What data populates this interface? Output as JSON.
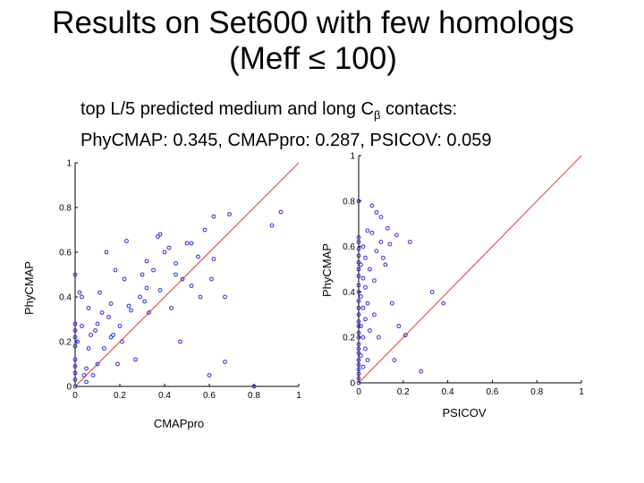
{
  "title": {
    "line1": "Results on Set600 with few homologs",
    "line2": "(Meff  ≤ 100)"
  },
  "subtitle": {
    "line1_before": "top L/5 predicted medium and long C",
    "line1_sub": "β",
    "line1_after": " contacts:",
    "line2": "PhyCMAP: 0.345, CMAPpro: 0.287, PSICOV: 0.059"
  },
  "chart_data": [
    {
      "type": "scatter",
      "xlabel": "CMAPpro",
      "ylabel": "PhyCMAP",
      "xlim": [
        0,
        1
      ],
      "ylim": [
        0,
        1
      ],
      "xticks": [
        0,
        0.2,
        0.4,
        0.6,
        0.8,
        1
      ],
      "yticks": [
        0,
        0.2,
        0.4,
        0.6,
        0.8,
        1
      ],
      "diagonal": true,
      "marker_color": "#2b2bd6",
      "line_color": "#e23b2e",
      "points": [
        [
          0.0,
          0.0
        ],
        [
          0.0,
          0.03
        ],
        [
          0.0,
          0.06
        ],
        [
          0.0,
          0.09
        ],
        [
          0.0,
          0.12
        ],
        [
          0.0,
          0.18
        ],
        [
          0.0,
          0.22
        ],
        [
          0.0,
          0.25
        ],
        [
          0.0,
          0.28
        ],
        [
          0.0,
          0.5
        ],
        [
          0.01,
          0.2
        ],
        [
          0.02,
          0.42
        ],
        [
          0.03,
          0.27
        ],
        [
          0.03,
          0.4
        ],
        [
          0.04,
          0.05
        ],
        [
          0.05,
          0.02
        ],
        [
          0.05,
          0.08
        ],
        [
          0.06,
          0.17
        ],
        [
          0.06,
          0.35
        ],
        [
          0.07,
          0.23
        ],
        [
          0.08,
          0.05
        ],
        [
          0.09,
          0.25
        ],
        [
          0.1,
          0.1
        ],
        [
          0.1,
          0.28
        ],
        [
          0.11,
          0.42
        ],
        [
          0.12,
          0.33
        ],
        [
          0.13,
          0.17
        ],
        [
          0.14,
          0.6
        ],
        [
          0.15,
          0.31
        ],
        [
          0.16,
          0.22
        ],
        [
          0.16,
          0.37
        ],
        [
          0.17,
          0.23
        ],
        [
          0.18,
          0.52
        ],
        [
          0.19,
          0.1
        ],
        [
          0.2,
          0.27
        ],
        [
          0.21,
          0.2
        ],
        [
          0.22,
          0.48
        ],
        [
          0.23,
          0.65
        ],
        [
          0.24,
          0.36
        ],
        [
          0.25,
          0.34
        ],
        [
          0.27,
          0.12
        ],
        [
          0.29,
          0.4
        ],
        [
          0.3,
          0.5
        ],
        [
          0.31,
          0.38
        ],
        [
          0.32,
          0.56
        ],
        [
          0.32,
          0.44
        ],
        [
          0.33,
          0.33
        ],
        [
          0.35,
          0.52
        ],
        [
          0.37,
          0.67
        ],
        [
          0.38,
          0.68
        ],
        [
          0.38,
          0.43
        ],
        [
          0.4,
          0.6
        ],
        [
          0.42,
          0.62
        ],
        [
          0.43,
          0.35
        ],
        [
          0.45,
          0.5
        ],
        [
          0.45,
          0.55
        ],
        [
          0.47,
          0.2
        ],
        [
          0.48,
          0.48
        ],
        [
          0.5,
          0.64
        ],
        [
          0.52,
          0.64
        ],
        [
          0.52,
          0.45
        ],
        [
          0.55,
          0.58
        ],
        [
          0.56,
          0.4
        ],
        [
          0.58,
          0.7
        ],
        [
          0.6,
          0.05
        ],
        [
          0.61,
          0.48
        ],
        [
          0.62,
          0.76
        ],
        [
          0.62,
          0.57
        ],
        [
          0.67,
          0.4
        ],
        [
          0.67,
          0.11
        ],
        [
          0.69,
          0.77
        ],
        [
          0.8,
          0.0
        ],
        [
          0.88,
          0.72
        ],
        [
          0.92,
          0.78
        ]
      ]
    },
    {
      "type": "scatter",
      "xlabel": "PSICOV",
      "ylabel": "PhyCMAP",
      "xlim": [
        0,
        1
      ],
      "ylim": [
        0,
        1
      ],
      "xticks": [
        0,
        0.2,
        0.4,
        0.6,
        0.8,
        1
      ],
      "yticks": [
        0,
        0.2,
        0.4,
        0.6,
        0.8,
        1
      ],
      "diagonal": true,
      "marker_color": "#2b2bd6",
      "line_color": "#e23b2e",
      "points": [
        [
          0.0,
          0.0
        ],
        [
          0.0,
          0.02
        ],
        [
          0.0,
          0.04
        ],
        [
          0.0,
          0.06
        ],
        [
          0.0,
          0.08
        ],
        [
          0.0,
          0.1
        ],
        [
          0.0,
          0.13
        ],
        [
          0.0,
          0.15
        ],
        [
          0.0,
          0.17
        ],
        [
          0.0,
          0.2
        ],
        [
          0.0,
          0.22
        ],
        [
          0.0,
          0.25
        ],
        [
          0.0,
          0.27
        ],
        [
          0.0,
          0.3
        ],
        [
          0.0,
          0.33
        ],
        [
          0.0,
          0.36
        ],
        [
          0.0,
          0.4
        ],
        [
          0.0,
          0.43
        ],
        [
          0.0,
          0.47
        ],
        [
          0.0,
          0.5
        ],
        [
          0.0,
          0.53
        ],
        [
          0.0,
          0.56
        ],
        [
          0.0,
          0.59
        ],
        [
          0.0,
          0.62
        ],
        [
          0.0,
          0.64
        ],
        [
          0.0,
          0.8
        ],
        [
          0.01,
          0.12
        ],
        [
          0.01,
          0.25
        ],
        [
          0.01,
          0.38
        ],
        [
          0.01,
          0.52
        ],
        [
          0.02,
          0.07
        ],
        [
          0.02,
          0.2
        ],
        [
          0.02,
          0.33
        ],
        [
          0.02,
          0.46
        ],
        [
          0.02,
          0.6
        ],
        [
          0.03,
          0.15
        ],
        [
          0.03,
          0.28
        ],
        [
          0.03,
          0.42
        ],
        [
          0.03,
          0.55
        ],
        [
          0.04,
          0.67
        ],
        [
          0.04,
          0.1
        ],
        [
          0.04,
          0.35
        ],
        [
          0.05,
          0.23
        ],
        [
          0.05,
          0.5
        ],
        [
          0.06,
          0.66
        ],
        [
          0.06,
          0.78
        ],
        [
          0.07,
          0.3
        ],
        [
          0.07,
          0.45
        ],
        [
          0.08,
          0.75
        ],
        [
          0.08,
          0.58
        ],
        [
          0.09,
          0.2
        ],
        [
          0.1,
          0.62
        ],
        [
          0.1,
          0.73
        ],
        [
          0.11,
          0.55
        ],
        [
          0.12,
          0.52
        ],
        [
          0.13,
          0.68
        ],
        [
          0.14,
          0.61
        ],
        [
          0.15,
          0.35
        ],
        [
          0.16,
          0.1
        ],
        [
          0.17,
          0.65
        ],
        [
          0.18,
          0.25
        ],
        [
          0.21,
          0.21
        ],
        [
          0.23,
          0.62
        ],
        [
          0.28,
          0.05
        ],
        [
          0.33,
          0.4
        ],
        [
          0.38,
          0.35
        ]
      ]
    }
  ]
}
